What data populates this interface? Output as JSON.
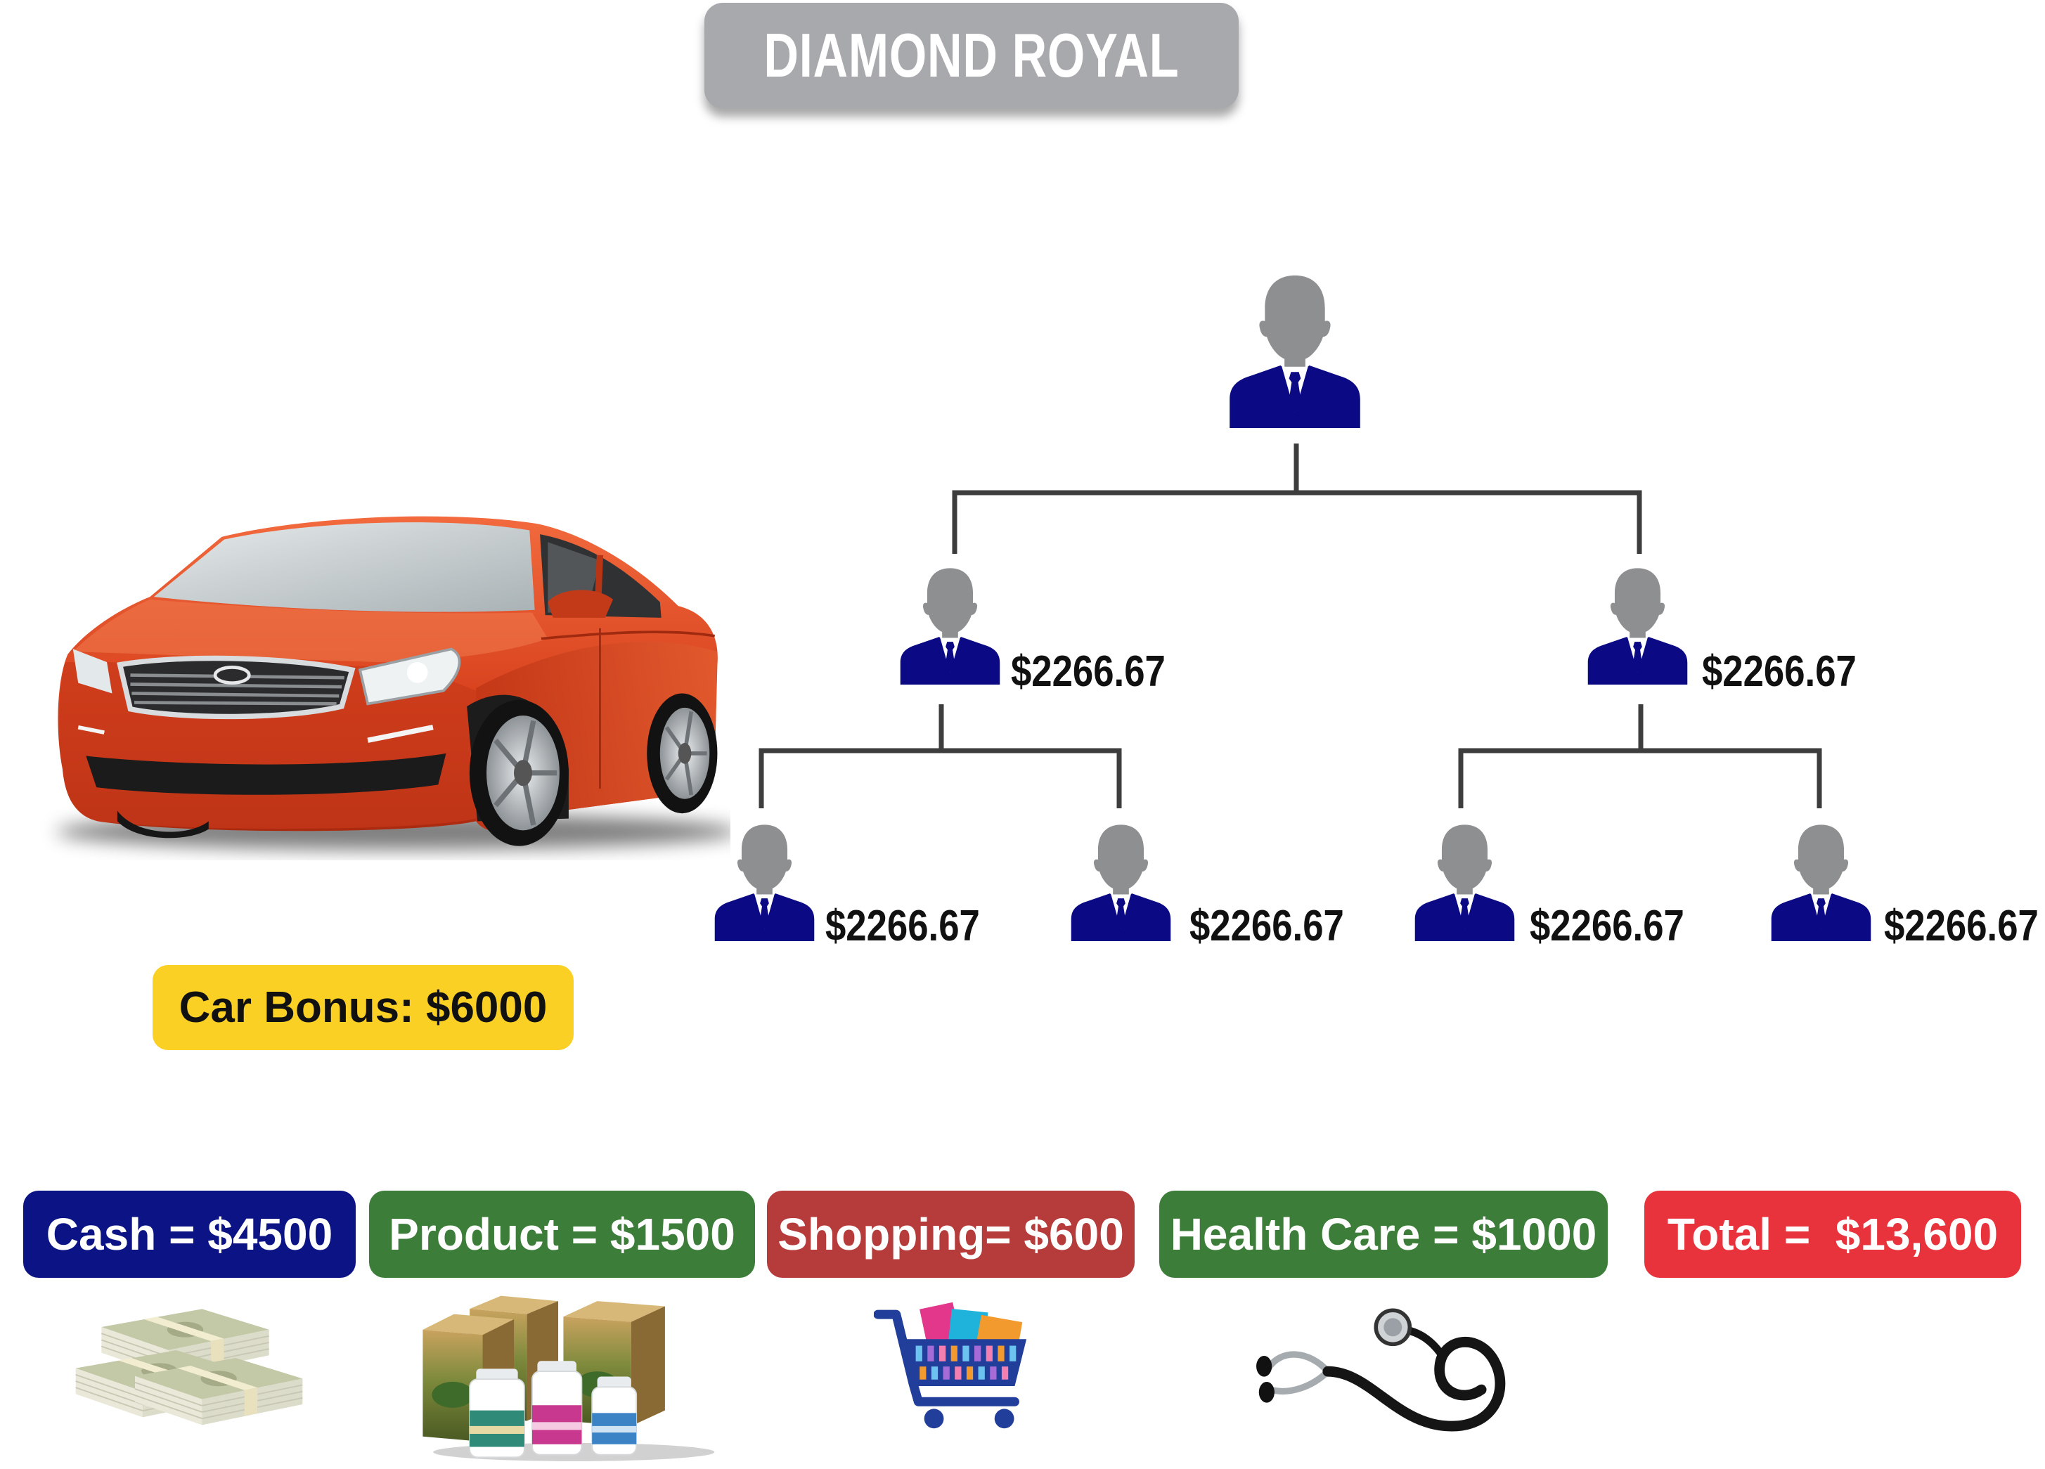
{
  "title": "DIAMOND ROYAL",
  "tree": {
    "root": {
      "icon": "person-icon"
    },
    "level2": [
      {
        "amount": "$2266.67",
        "icon": "person-icon"
      },
      {
        "amount": "$2266.67",
        "icon": "person-icon"
      }
    ],
    "level3": [
      {
        "amount": "$2266.67",
        "icon": "person-icon"
      },
      {
        "amount": "$2266.67",
        "icon": "person-icon"
      },
      {
        "amount": "$2266.67",
        "icon": "person-icon"
      },
      {
        "amount": "$2266.67",
        "icon": "person-icon"
      }
    ]
  },
  "car_bonus": {
    "label": "Car Bonus: $6000",
    "color": "#fbd024",
    "icon": "car-image"
  },
  "rewards": [
    {
      "label": "Cash = $4500",
      "color": "#0c1385",
      "icon": "cash-stack-icon"
    },
    {
      "label": "Product = $1500",
      "color": "#3d7d3a",
      "icon": "product-bundle-icon"
    },
    {
      "label": "Shopping= $600",
      "color": "#b63b3b",
      "icon": "shopping-cart-icon"
    },
    {
      "label": "Health Care = $1000",
      "color": "#3d7d3a",
      "icon": "stethoscope-icon"
    }
  ],
  "total": {
    "label": "Total =  $13,600",
    "color": "#e8333d"
  },
  "colors": {
    "title_bg": "#a7a9ac",
    "person_head": "#8e8f91",
    "person_suit": "#0b0a84",
    "connector": "#3d3d3d"
  }
}
